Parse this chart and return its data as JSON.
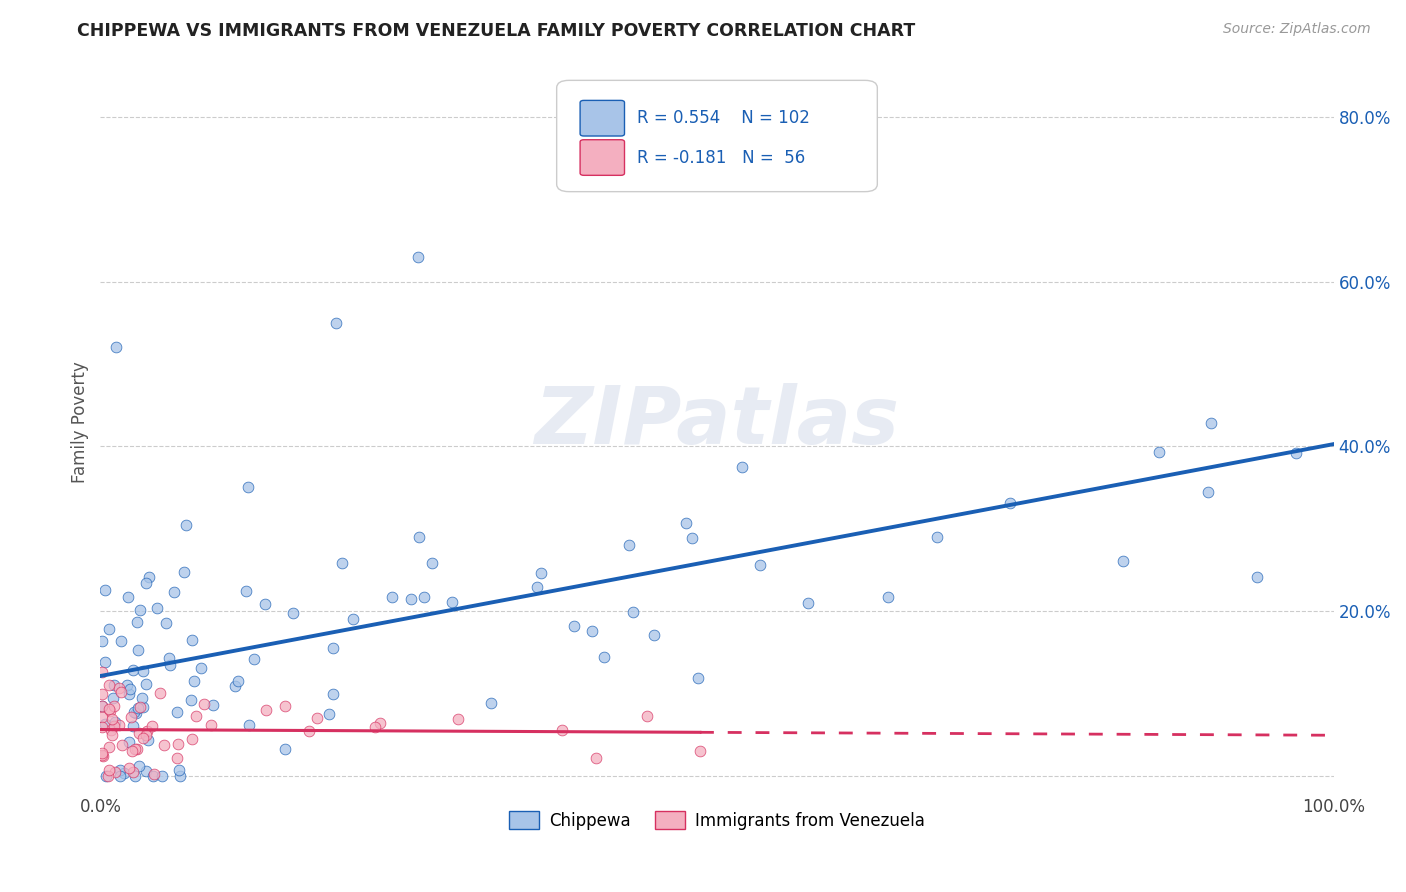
{
  "title": "CHIPPEWA VS IMMIGRANTS FROM VENEZUELA FAMILY POVERTY CORRELATION CHART",
  "source": "Source: ZipAtlas.com",
  "ylabel": "Family Poverty",
  "xlim": [
    0,
    1.0
  ],
  "ylim": [
    -0.02,
    0.88
  ],
  "x_ticks": [
    0.0,
    0.25,
    0.5,
    0.75,
    1.0
  ],
  "x_tick_labels": [
    "0.0%",
    "",
    "",
    "",
    "100.0%"
  ],
  "y_ticks": [
    0.0,
    0.2,
    0.4,
    0.6,
    0.8
  ],
  "y_tick_labels": [
    "",
    "20.0%",
    "40.0%",
    "60.0%",
    "80.0%"
  ],
  "chippewa_color": "#a8c4e8",
  "venezuela_color": "#f4afc0",
  "chippewa_line_color": "#1a5fb4",
  "venezuela_line_color": "#d63060",
  "R_chippewa": 0.554,
  "N_chippewa": 102,
  "R_venezuela": -0.181,
  "N_venezuela": 56,
  "watermark_text": "ZIPatlas",
  "grid_color": "#cccccc",
  "title_color": "#222222",
  "source_color": "#999999",
  "ylabel_color": "#555555",
  "tick_color": "#1a5fb4"
}
